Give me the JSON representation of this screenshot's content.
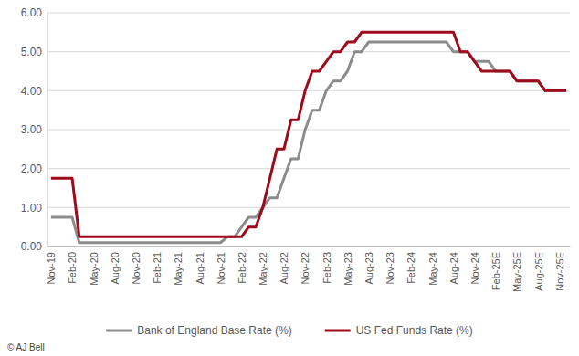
{
  "chart_data": {
    "type": "line",
    "categories": [
      "Nov-19",
      null,
      null,
      "Feb-20",
      null,
      null,
      "May-20",
      null,
      null,
      "Aug-20",
      null,
      null,
      "Nov-20",
      null,
      null,
      "Feb-21",
      null,
      null,
      "May-21",
      null,
      null,
      "Aug-21",
      null,
      null,
      "Nov-21",
      null,
      null,
      "Feb-22",
      null,
      null,
      "May-22",
      null,
      null,
      "Aug-22",
      null,
      null,
      "Nov-22",
      null,
      null,
      "Feb-23",
      null,
      null,
      "May-23",
      null,
      null,
      "Aug-23",
      null,
      null,
      "Nov-23",
      null,
      null,
      "Feb-24",
      null,
      null,
      "May-24",
      null,
      null,
      "Aug-24",
      null,
      null,
      "Nov-24",
      null,
      null,
      "Feb-25E",
      null,
      null,
      "May-25E",
      null,
      null,
      "Aug-25E",
      null,
      null,
      "Nov-25E",
      null
    ],
    "series": [
      {
        "name": "Bank of England Base Rate (%)",
        "color": "#8c8c8c",
        "values": [
          0.75,
          0.75,
          0.75,
          0.75,
          0.1,
          0.1,
          0.1,
          0.1,
          0.1,
          0.1,
          0.1,
          0.1,
          0.1,
          0.1,
          0.1,
          0.1,
          0.1,
          0.1,
          0.1,
          0.1,
          0.1,
          0.1,
          0.1,
          0.1,
          0.1,
          0.25,
          0.25,
          0.5,
          0.75,
          0.75,
          1.0,
          1.25,
          1.25,
          1.75,
          2.25,
          2.25,
          3.0,
          3.5,
          3.5,
          4.0,
          4.25,
          4.25,
          4.5,
          5.0,
          5.0,
          5.25,
          5.25,
          5.25,
          5.25,
          5.25,
          5.25,
          5.25,
          5.25,
          5.25,
          5.25,
          5.25,
          5.25,
          5.0,
          5.0,
          5.0,
          4.75,
          4.75,
          4.75,
          4.5,
          4.5,
          4.5,
          4.25,
          4.25,
          4.25,
          4.25,
          4.0,
          4.0,
          4.0,
          4.0
        ]
      },
      {
        "name": "US Fed Funds Rate (%)",
        "color": "#9e0b1a",
        "values": [
          1.75,
          1.75,
          1.75,
          1.75,
          0.25,
          0.25,
          0.25,
          0.25,
          0.25,
          0.25,
          0.25,
          0.25,
          0.25,
          0.25,
          0.25,
          0.25,
          0.25,
          0.25,
          0.25,
          0.25,
          0.25,
          0.25,
          0.25,
          0.25,
          0.25,
          0.25,
          0.25,
          0.25,
          0.5,
          0.5,
          1.0,
          1.75,
          2.5,
          2.5,
          3.25,
          3.25,
          4.0,
          4.5,
          4.5,
          4.75,
          5.0,
          5.0,
          5.25,
          5.25,
          5.5,
          5.5,
          5.5,
          5.5,
          5.5,
          5.5,
          5.5,
          5.5,
          5.5,
          5.5,
          5.5,
          5.5,
          5.5,
          5.5,
          5.0,
          5.0,
          4.75,
          4.5,
          4.5,
          4.5,
          4.5,
          4.5,
          4.25,
          4.25,
          4.25,
          4.25,
          4.0,
          4.0,
          4.0,
          4.0
        ]
      }
    ],
    "ylim": [
      0,
      6
    ],
    "yticks": [
      {
        "value": 0,
        "label": "0.00"
      },
      {
        "value": 1,
        "label": "1.00"
      },
      {
        "value": 2,
        "label": "2.00"
      },
      {
        "value": 3,
        "label": "3.00"
      },
      {
        "value": 4,
        "label": "4.00"
      },
      {
        "value": 5,
        "label": "5.00"
      },
      {
        "value": 6,
        "label": "6.00"
      }
    ],
    "grid": true,
    "legend": "bottom",
    "annotations": [
      {
        "text": "© AJ Bell"
      }
    ]
  }
}
